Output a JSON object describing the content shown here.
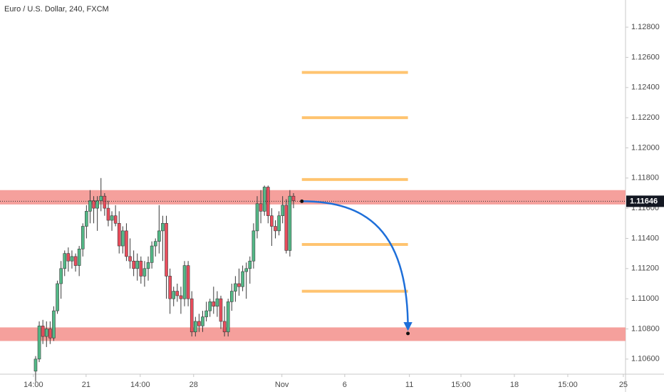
{
  "chart_data": {
    "type": "candlestick",
    "title": "Euro / U.S. Dollar, 240, FXCM",
    "x": [
      0,
      1,
      2,
      3,
      4,
      5,
      6,
      7,
      8,
      9,
      10,
      11,
      12,
      13,
      14,
      15,
      16,
      17,
      18,
      19,
      20,
      21,
      22,
      23,
      24,
      25,
      26,
      27,
      28,
      29,
      30,
      31,
      32,
      33,
      34,
      35,
      36,
      37,
      38,
      39,
      40,
      41,
      42,
      43,
      44,
      45,
      46,
      47,
      48,
      49,
      50,
      51,
      52,
      53,
      54,
      55,
      56,
      57,
      58,
      59,
      60,
      61,
      62,
      63,
      64,
      65,
      66,
      67,
      68,
      69,
      70,
      71
    ],
    "ohlc": [
      [
        1.1052,
        1.1062,
        1.1045,
        1.106
      ],
      [
        1.106,
        1.1085,
        1.1058,
        1.1082
      ],
      [
        1.1082,
        1.1086,
        1.107,
        1.1075
      ],
      [
        1.1075,
        1.1085,
        1.1068,
        1.108
      ],
      [
        1.108,
        1.1085,
        1.107,
        1.1074
      ],
      [
        1.1074,
        1.1095,
        1.1072,
        1.1092
      ],
      [
        1.1092,
        1.1112,
        1.109,
        1.111
      ],
      [
        1.111,
        1.1125,
        1.11,
        1.112
      ],
      [
        1.112,
        1.1132,
        1.1115,
        1.113
      ],
      [
        1.113,
        1.1134,
        1.1118,
        1.1125
      ],
      [
        1.1125,
        1.1132,
        1.112,
        1.1128
      ],
      [
        1.1128,
        1.113,
        1.1118,
        1.1122
      ],
      [
        1.1122,
        1.1135,
        1.1115,
        1.1133
      ],
      [
        1.1133,
        1.115,
        1.1128,
        1.1148
      ],
      [
        1.1148,
        1.1162,
        1.114,
        1.1158
      ],
      [
        1.1158,
        1.1172,
        1.115,
        1.1165
      ],
      [
        1.1165,
        1.1168,
        1.115,
        1.116
      ],
      [
        1.116,
        1.1168,
        1.1145,
        1.1165
      ],
      [
        1.1165,
        1.118,
        1.1158,
        1.1168
      ],
      [
        1.1168,
        1.117,
        1.1155,
        1.116
      ],
      [
        1.116,
        1.1165,
        1.1148,
        1.1152
      ],
      [
        1.1152,
        1.1158,
        1.1145,
        1.1155
      ],
      [
        1.1155,
        1.1162,
        1.1148,
        1.115
      ],
      [
        1.115,
        1.1158,
        1.113,
        1.1135
      ],
      [
        1.1135,
        1.1148,
        1.113,
        1.1145
      ],
      [
        1.1145,
        1.115,
        1.1125,
        1.1128
      ],
      [
        1.1128,
        1.114,
        1.112,
        1.1125
      ],
      [
        1.1125,
        1.1132,
        1.1115,
        1.112
      ],
      [
        1.112,
        1.113,
        1.1112,
        1.1125
      ],
      [
        1.1125,
        1.1128,
        1.111,
        1.1115
      ],
      [
        1.1115,
        1.1125,
        1.1108,
        1.112
      ],
      [
        1.112,
        1.1128,
        1.1112,
        1.1124
      ],
      [
        1.1124,
        1.1138,
        1.112,
        1.1135
      ],
      [
        1.1135,
        1.114,
        1.1128,
        1.1138
      ],
      [
        1.1138,
        1.1162,
        1.113,
        1.1145
      ],
      [
        1.1145,
        1.1155,
        1.1125,
        1.115
      ],
      [
        1.115,
        1.1155,
        1.11,
        1.1115
      ],
      [
        1.1115,
        1.112,
        1.109,
        1.11
      ],
      [
        1.11,
        1.1108,
        1.1095,
        1.1105
      ],
      [
        1.1105,
        1.111,
        1.1098,
        1.1102
      ],
      [
        1.1102,
        1.1108,
        1.109,
        1.11
      ],
      [
        1.11,
        1.1125,
        1.1095,
        1.1122
      ],
      [
        1.1122,
        1.1125,
        1.1095,
        1.11
      ],
      [
        1.11,
        1.1105,
        1.1075,
        1.1078
      ],
      [
        1.1078,
        1.1088,
        1.1075,
        1.1085
      ],
      [
        1.1085,
        1.109,
        1.1078,
        1.1082
      ],
      [
        1.1082,
        1.1092,
        1.1078,
        1.1088
      ],
      [
        1.1088,
        1.1098,
        1.1085,
        1.1092
      ],
      [
        1.1092,
        1.11,
        1.1088,
        1.1098
      ],
      [
        1.1098,
        1.1108,
        1.109,
        1.1095
      ],
      [
        1.1095,
        1.1105,
        1.1088,
        1.11
      ],
      [
        1.11,
        1.1102,
        1.108,
        1.1085
      ],
      [
        1.1085,
        1.1095,
        1.1075,
        1.1078
      ],
      [
        1.1078,
        1.11,
        1.1075,
        1.1098
      ],
      [
        1.1098,
        1.111,
        1.1092,
        1.1105
      ],
      [
        1.1105,
        1.1115,
        1.1098,
        1.111
      ],
      [
        1.111,
        1.112,
        1.1102,
        1.1108
      ],
      [
        1.1108,
        1.1122,
        1.1105,
        1.1118
      ],
      [
        1.1118,
        1.1124,
        1.11,
        1.112
      ],
      [
        1.112,
        1.1128,
        1.111,
        1.1125
      ],
      [
        1.1125,
        1.115,
        1.112,
        1.1145
      ],
      [
        1.1145,
        1.1168,
        1.114,
        1.1163
      ],
      [
        1.1163,
        1.1172,
        1.115,
        1.1158
      ],
      [
        1.1158,
        1.1175,
        1.1155,
        1.1174
      ],
      [
        1.1174,
        1.1175,
        1.115,
        1.1155
      ],
      [
        1.1155,
        1.116,
        1.1135,
        1.1148
      ],
      [
        1.1148,
        1.1152,
        1.114,
        1.1145
      ],
      [
        1.1145,
        1.1158,
        1.1142,
        1.1155
      ],
      [
        1.1155,
        1.1168,
        1.115,
        1.1162
      ],
      [
        1.1162,
        1.1166,
        1.113,
        1.1132
      ],
      [
        1.1132,
        1.1172,
        1.1128,
        1.1168
      ],
      [
        1.1168,
        1.117,
        1.116,
        1.1165
      ]
    ],
    "up_color": "#53b987",
    "down_color": "#eb4d5c",
    "xlim": [
      -9.8,
      162.4
    ],
    "xticks": [
      {
        "value": -0.6,
        "label": "14:00"
      },
      {
        "value": 13.9,
        "label": "21"
      },
      {
        "value": 28.8,
        "label": "14:00"
      },
      {
        "value": 43.5,
        "label": "28"
      },
      {
        "value": 67.8,
        "label": "Nov"
      },
      {
        "value": 85.1,
        "label": "6"
      },
      {
        "value": 102.9,
        "label": "11"
      },
      {
        "value": 117.1,
        "label": "15:00"
      },
      {
        "value": 131.8,
        "label": "18"
      },
      {
        "value": 146.5,
        "label": "15:00"
      },
      {
        "value": 161.8,
        "label": "25"
      }
    ],
    "ylim": [
      1.105,
      1.1298
    ],
    "yticks": [
      {
        "value": 1.106,
        "label": "1.10600"
      },
      {
        "value": 1.108,
        "label": "1.10800"
      },
      {
        "value": 1.11,
        "label": "1.11000"
      },
      {
        "value": 1.112,
        "label": "1.11200"
      },
      {
        "value": 1.114,
        "label": "1.11400"
      },
      {
        "value": 1.116,
        "label": "1.11600"
      },
      {
        "value": 1.118,
        "label": "1.11800"
      },
      {
        "value": 1.12,
        "label": "1.12000"
      },
      {
        "value": 1.122,
        "label": "1.12200"
      },
      {
        "value": 1.124,
        "label": "1.12400"
      },
      {
        "value": 1.126,
        "label": "1.12600"
      },
      {
        "value": 1.128,
        "label": "1.12800"
      }
    ],
    "grid": false,
    "zones": [
      [
        1.11625,
        1.1172
      ],
      [
        1.1072,
        1.1081
      ]
    ],
    "zone_color": "#f5a09c",
    "levels": [
      1.125,
      1.122,
      1.1179,
      1.1136,
      1.1105
    ],
    "levels_x": [
      73.3,
      102.5
    ],
    "level_color": "#ffc470",
    "last_price": 1.11646,
    "arrow": {
      "from": [
        73.3,
        1.11646
      ],
      "to": [
        102.5,
        1.1077
      ],
      "color": "#1e6fd9"
    }
  }
}
